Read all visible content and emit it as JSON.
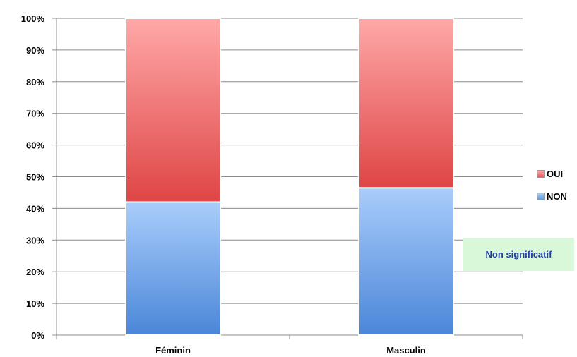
{
  "chart_data": {
    "type": "bar",
    "stacked": true,
    "percent": true,
    "categories": [
      "Féminin",
      "Masculin"
    ],
    "series": [
      {
        "name": "NON",
        "values": [
          42,
          46.5
        ],
        "color": "#5b9bd5"
      },
      {
        "name": "OUI",
        "values": [
          58,
          53.5
        ],
        "color": "#e05a5a"
      }
    ],
    "ylim": [
      0,
      100
    ],
    "yticks": [
      "0%",
      "10%",
      "20%",
      "30%",
      "40%",
      "50%",
      "60%",
      "70%",
      "80%",
      "90%",
      "100%"
    ],
    "grid": true,
    "legend_position": "right",
    "legend": [
      {
        "label": "OUI",
        "color": "#e05a5a"
      },
      {
        "label": "NON",
        "color": "#5b9bd5"
      }
    ],
    "annotation": "Non significatif"
  }
}
